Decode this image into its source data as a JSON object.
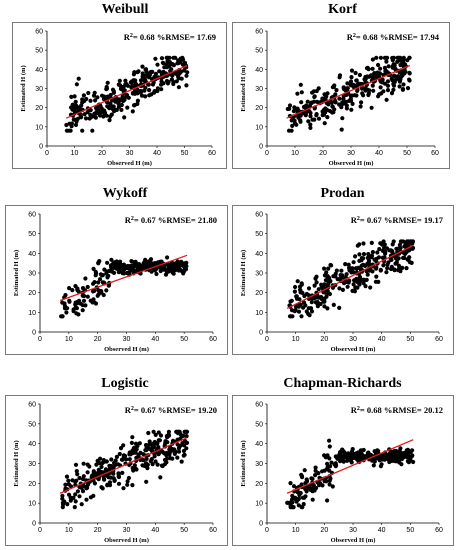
{
  "chart_data": [
    {
      "type": "scatter",
      "title": "Weibull",
      "xlabel": "Observed H (m)",
      "ylabel": "Estimated H (m)",
      "r2_label": "R",
      "r2_exp": "2",
      "r2_value": "= 0.68",
      "rmse_label": "%RMSE= 17.69",
      "xlim": [
        0,
        60
      ],
      "ylim": [
        0,
        60
      ],
      "xticks": [
        "0",
        "10",
        "20",
        "30",
        "40",
        "50",
        "60"
      ],
      "yticks": [
        "0",
        "10",
        "20",
        "30",
        "40",
        "50",
        "60"
      ],
      "trend": {
        "x": [
          7,
          51
        ],
        "y": [
          14.5,
          42
        ]
      },
      "colors": {
        "points": "#000000",
        "trend": "#e31a1c"
      },
      "seed": 11,
      "spread": 5.0,
      "model": {
        "a": 0.62,
        "b": 10.2
      }
    },
    {
      "type": "scatter",
      "title": "Korf",
      "xlabel": "Observed H (m)",
      "ylabel": "Estimated H (m)",
      "r2_label": "R",
      "r2_exp": "2",
      "r2_value": "= 0.68",
      "rmse_label": "%RMSE= 17.94",
      "xlim": [
        0,
        60
      ],
      "ylim": [
        0,
        60
      ],
      "xticks": [
        "0",
        "10",
        "20",
        "30",
        "40",
        "50",
        "60"
      ],
      "yticks": [
        "0",
        "10",
        "20",
        "30",
        "40",
        "50",
        "60"
      ],
      "trend": {
        "x": [
          7,
          51
        ],
        "y": [
          14.5,
          42
        ]
      },
      "colors": {
        "points": "#000000",
        "trend": "#e31a1c"
      },
      "seed": 23,
      "spread": 5.0,
      "model": {
        "a": 0.62,
        "b": 10.2
      }
    },
    {
      "type": "scatter",
      "title": "Wykoff",
      "xlabel": "Observed H (m)",
      "ylabel": "Estimated H (m)",
      "r2_label": "R",
      "r2_exp": "2",
      "r2_value": "= 0.67",
      "rmse_label": "%RMSE= 21.80",
      "xlim": [
        0,
        60
      ],
      "ylim": [
        0,
        60
      ],
      "xticks": [
        "0",
        "10",
        "20",
        "30",
        "40",
        "50",
        "60"
      ],
      "yticks": [
        "0",
        "10",
        "20",
        "30",
        "40",
        "50",
        "60"
      ],
      "trend": {
        "x": [
          7,
          51
        ],
        "y": [
          16,
          39
        ]
      },
      "colors": {
        "points": "#000000",
        "trend": "#e31a1c"
      },
      "seed": 37,
      "spread": 3.5,
      "model": {
        "a": 0.52,
        "b": 12.3,
        "saturate": 35
      }
    },
    {
      "type": "scatter",
      "title": "Prodan",
      "xlabel": "Observed H (m)",
      "ylabel": "Estimated H (m)",
      "r2_label": "R",
      "r2_exp": "2",
      "r2_value": "= 0.67",
      "rmse_label": "%RMSE= 19.17",
      "xlim": [
        0,
        60
      ],
      "ylim": [
        0,
        60
      ],
      "xticks": [
        "0",
        "10",
        "20",
        "30",
        "40",
        "50",
        "60"
      ],
      "yticks": [
        "0",
        "10",
        "20",
        "30",
        "40",
        "50",
        "60"
      ],
      "trend": {
        "x": [
          7,
          51
        ],
        "y": [
          12,
          44
        ]
      },
      "colors": {
        "points": "#000000",
        "trend": "#e31a1c"
      },
      "seed": 41,
      "spread": 5.5,
      "model": {
        "a": 0.72,
        "b": 7.0
      }
    },
    {
      "type": "scatter",
      "title": "Logistic",
      "xlabel": "Observed H (m)",
      "ylabel": "Estimated H (m)",
      "r2_label": "R",
      "r2_exp": "2",
      "r2_value": "= 0.67",
      "rmse_label": "%RMSE= 19.20",
      "xlim": [
        0,
        60
      ],
      "ylim": [
        0,
        60
      ],
      "xticks": [
        "0",
        "10",
        "20",
        "30",
        "40",
        "50",
        "60"
      ],
      "yticks": [
        "0",
        "10",
        "20",
        "30",
        "40",
        "50",
        "60"
      ],
      "trend": {
        "x": [
          7,
          51
        ],
        "y": [
          15,
          43
        ]
      },
      "colors": {
        "points": "#000000",
        "trend": "#e31a1c"
      },
      "seed": 53,
      "spread": 5.0,
      "model": {
        "a": 0.64,
        "b": 10.5
      }
    },
    {
      "type": "scatter",
      "title": "Chapman-Richards",
      "xlabel": "Observed H (m)",
      "ylabel": "Estimated H (m)",
      "r2_label": "R",
      "r2_exp": "2",
      "r2_value": "= 0.68",
      "rmse_label": "%RMSE= 20.12",
      "xlim": [
        0,
        60
      ],
      "ylim": [
        0,
        60
      ],
      "xticks": [
        "0",
        "10",
        "20",
        "30",
        "40",
        "50",
        "60"
      ],
      "yticks": [
        "0",
        "10",
        "20",
        "30",
        "40",
        "50",
        "60"
      ],
      "trend": {
        "x": [
          7,
          51
        ],
        "y": [
          15,
          42
        ]
      },
      "colors": {
        "points": "#000000",
        "trend": "#e31a1c"
      },
      "seed": 67,
      "spread": 3.0,
      "model": {
        "a": 0.55,
        "b": 11.5,
        "saturate": 35.5
      }
    }
  ]
}
